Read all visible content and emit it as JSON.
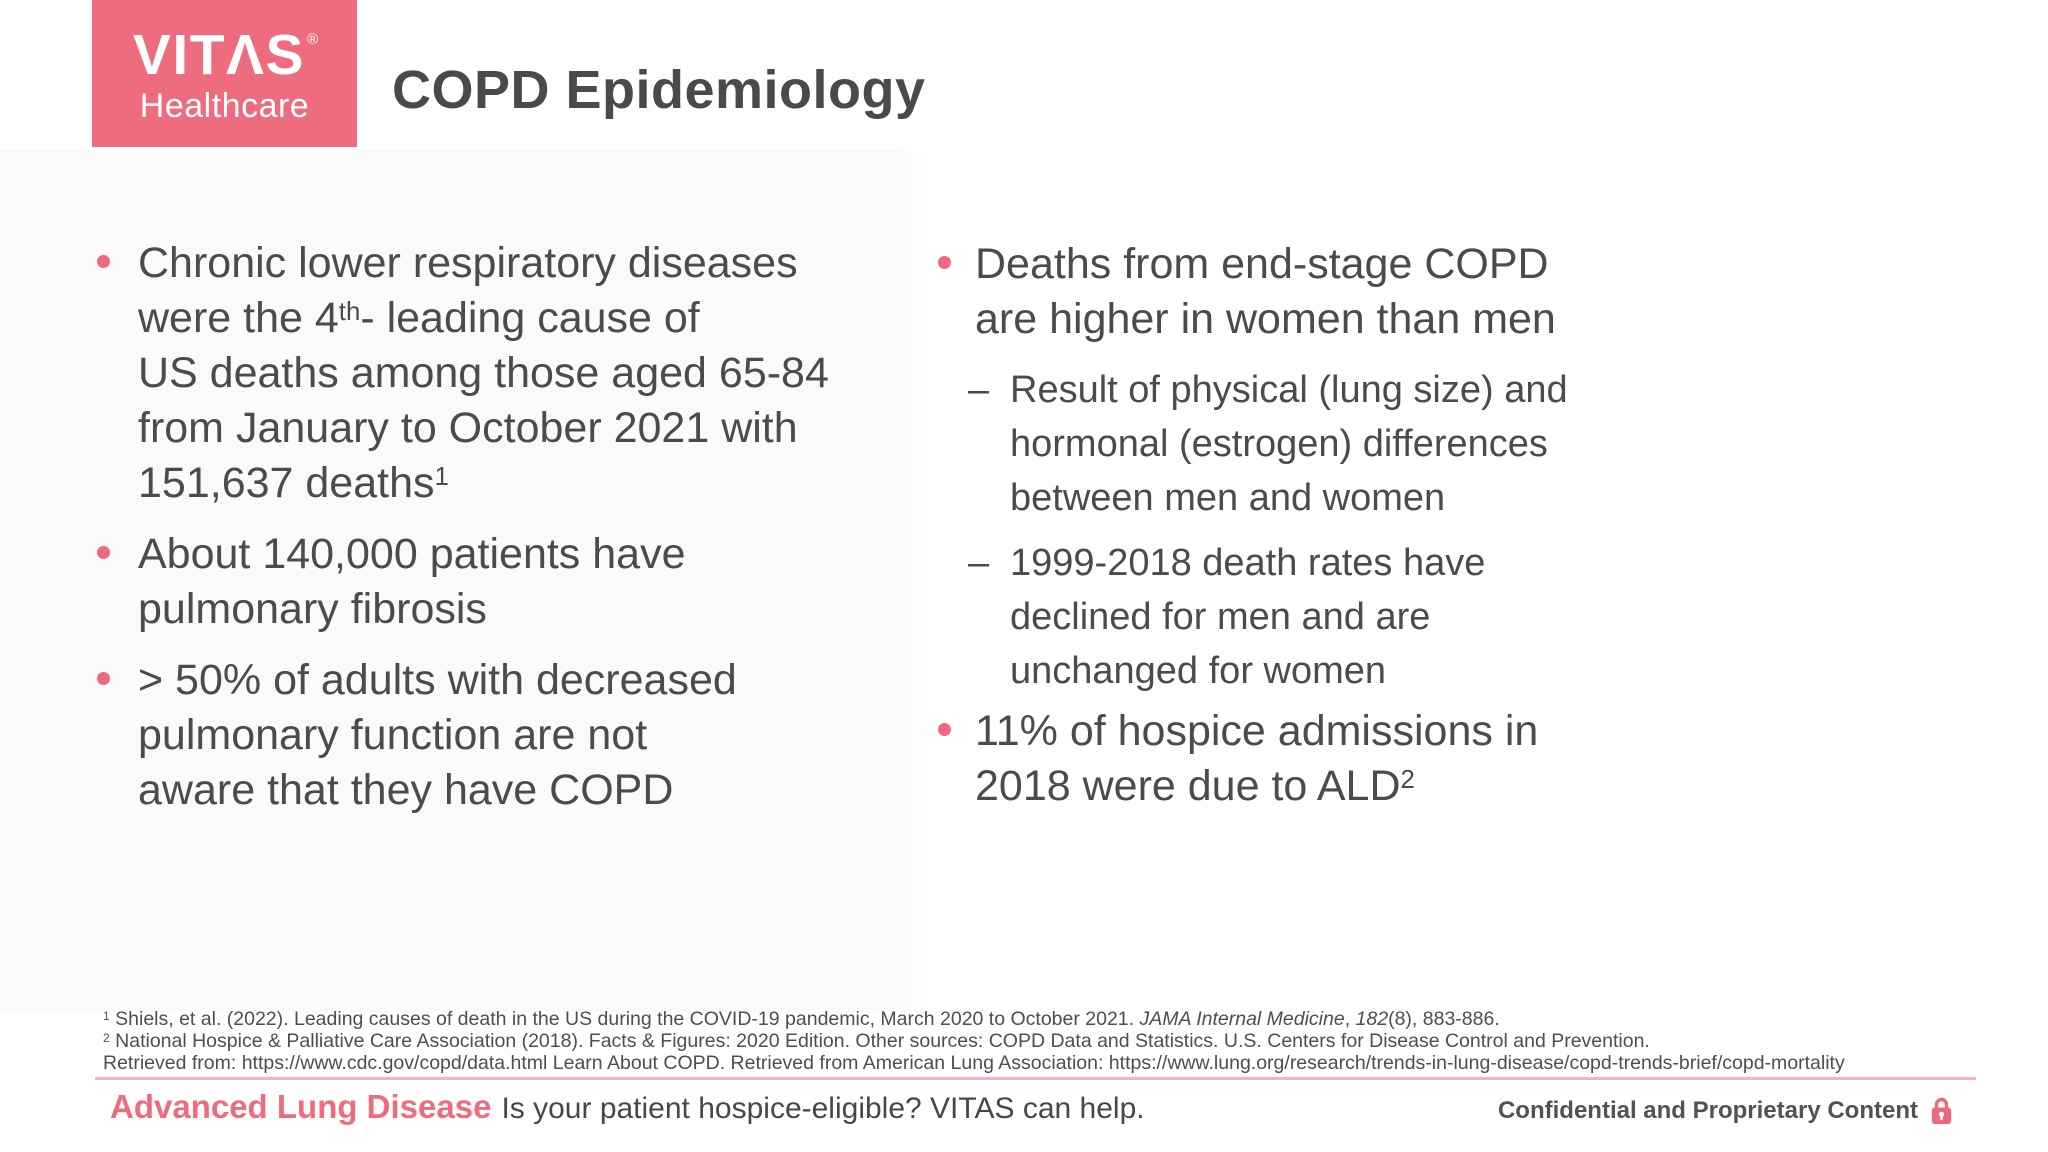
{
  "colors": {
    "accent": "#ed6c7d",
    "dot": "#f0697a",
    "text": "#4b4b4d",
    "rule": "#f1b7c0"
  },
  "logo": {
    "name": "VITΛS",
    "reg": "®",
    "sub": "Healthcare"
  },
  "header": {
    "title": "COPD Epidemiology"
  },
  "markers": {
    "bullet": "dot",
    "dash": "–"
  },
  "bullets": {
    "left": [
      {
        "level": 0,
        "segments": [
          {
            "t": "Chronic lower respiratory diseases"
          },
          {
            "br": true
          },
          {
            "t": "were the 4"
          },
          {
            "t": "th",
            "sup": true
          },
          {
            "t": "- leading cause of"
          },
          {
            "br": true
          },
          {
            "t": "US deaths among those aged 65-84"
          },
          {
            "br": true
          },
          {
            "t": "from January to October 2021 with"
          },
          {
            "br": true
          },
          {
            "t": "151,637 deaths"
          },
          {
            "t": "1",
            "sup": true
          }
        ]
      },
      {
        "level": 0,
        "segments": [
          {
            "t": "About 140,000 patients have"
          },
          {
            "br": true
          },
          {
            "t": "pulmonary fibrosis"
          }
        ]
      },
      {
        "level": 0,
        "segments": [
          {
            "t": "> 50% of adults with decreased"
          },
          {
            "br": true
          },
          {
            "t": "pulmonary function are not"
          },
          {
            "br": true
          },
          {
            "t": "aware that they have COPD"
          }
        ]
      }
    ],
    "right": [
      {
        "level": 0,
        "segments": [
          {
            "t": "Deaths from end-stage COPD"
          },
          {
            "br": true
          },
          {
            "t": "are higher in women than men"
          }
        ]
      },
      {
        "level": 1,
        "segments": [
          {
            "t": "Result of physical (lung size) and"
          },
          {
            "br": true
          },
          {
            "t": "hormonal (estrogen) differences"
          },
          {
            "br": true
          },
          {
            "t": "between men and women"
          }
        ]
      },
      {
        "level": 1,
        "segments": [
          {
            "t": "1999-2018 death rates have"
          },
          {
            "br": true
          },
          {
            "t": "declined for men and are"
          },
          {
            "br": true
          },
          {
            "t": "unchanged for women"
          }
        ]
      },
      {
        "level": 0,
        "segments": [
          {
            "t": "11% of hospice admissions in"
          },
          {
            "br": true
          },
          {
            "t": "2018 were due to ALD"
          },
          {
            "t": "2",
            "sup": true
          }
        ]
      }
    ]
  },
  "footnotes": [
    {
      "segments": [
        {
          "t": "1",
          "sup": true
        },
        {
          "t": " Shiels, et al. (2022). Leading causes of death in the US during the COVID-19 pandemic, March 2020 to October 2021. "
        },
        {
          "t": "JAMA Internal Medicine",
          "italic": true
        },
        {
          "t": ", "
        },
        {
          "t": "182",
          "italic": true
        },
        {
          "t": "(8), 883-886."
        }
      ]
    },
    {
      "segments": [
        {
          "t": "2",
          "sup": true
        },
        {
          "t": " National Hospice & Palliative Care Association (2018). Facts & Figures: 2020 Edition. Other sources: COPD Data and Statistics. U.S. Centers for Disease Control and Prevention."
        }
      ]
    },
    {
      "segments": [
        {
          "t": "Retrieved from: https://www.cdc.gov/copd/data.html Learn About COPD. Retrieved from American Lung Association: https://www.lung.org/research/trends-in-lung-disease/copd-trends-brief/copd-mortality"
        }
      ]
    }
  ],
  "footer": {
    "highlight": "Advanced Lung Disease",
    "tagline": "Is your patient hospice-eligible? VITAS can help.",
    "confidential": "Confidential and Proprietary Content"
  }
}
